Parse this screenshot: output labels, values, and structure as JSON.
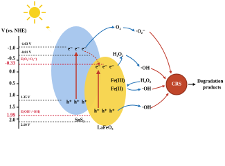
{
  "axis": {
    "title": "V (vs. NHE)",
    "ticks": [
      "-1.0",
      "-0.5",
      "0.0",
      "0.5",
      "1.0",
      "1.5",
      "2.0"
    ]
  },
  "levels": {
    "sns2_cb": "-1.03 V",
    "lafeo3_cb": "-0.81 V",
    "sns2_vb": "1.35 V",
    "lafeo3_vb": "2.10 V"
  },
  "redox": {
    "o2": {
      "label": "E(O₂/·O₂⁻)",
      "value": "-0.33"
    },
    "oh": {
      "label": "E(OH⁻/·OH)",
      "value": "1.99"
    }
  },
  "semiconductors": [
    {
      "name": "SnS₂",
      "electrons": [
        "e⁻",
        "e⁻",
        "e⁻"
      ],
      "holes": [
        "h⁺",
        "h⁺",
        "h⁺"
      ]
    },
    {
      "name": "LaFeO₃",
      "electrons": [
        "e⁻",
        "e⁻",
        "e⁻"
      ],
      "holes": [
        "h⁺",
        "h⁺",
        "h⁺"
      ]
    }
  ],
  "species": {
    "o2": "O₂",
    "superoxide": "·O₂⁻",
    "h2o2_top": "H₂O₂",
    "oh_top": "·OH",
    "fe3": "Fe(III)",
    "fe2": "Fe(II)",
    "h2o2_mid": "H₂O₂",
    "oh_mid": "·OH",
    "oh_bottom": "·OH"
  },
  "crs": "CRS",
  "products": [
    "Degradation",
    "products"
  ]
}
